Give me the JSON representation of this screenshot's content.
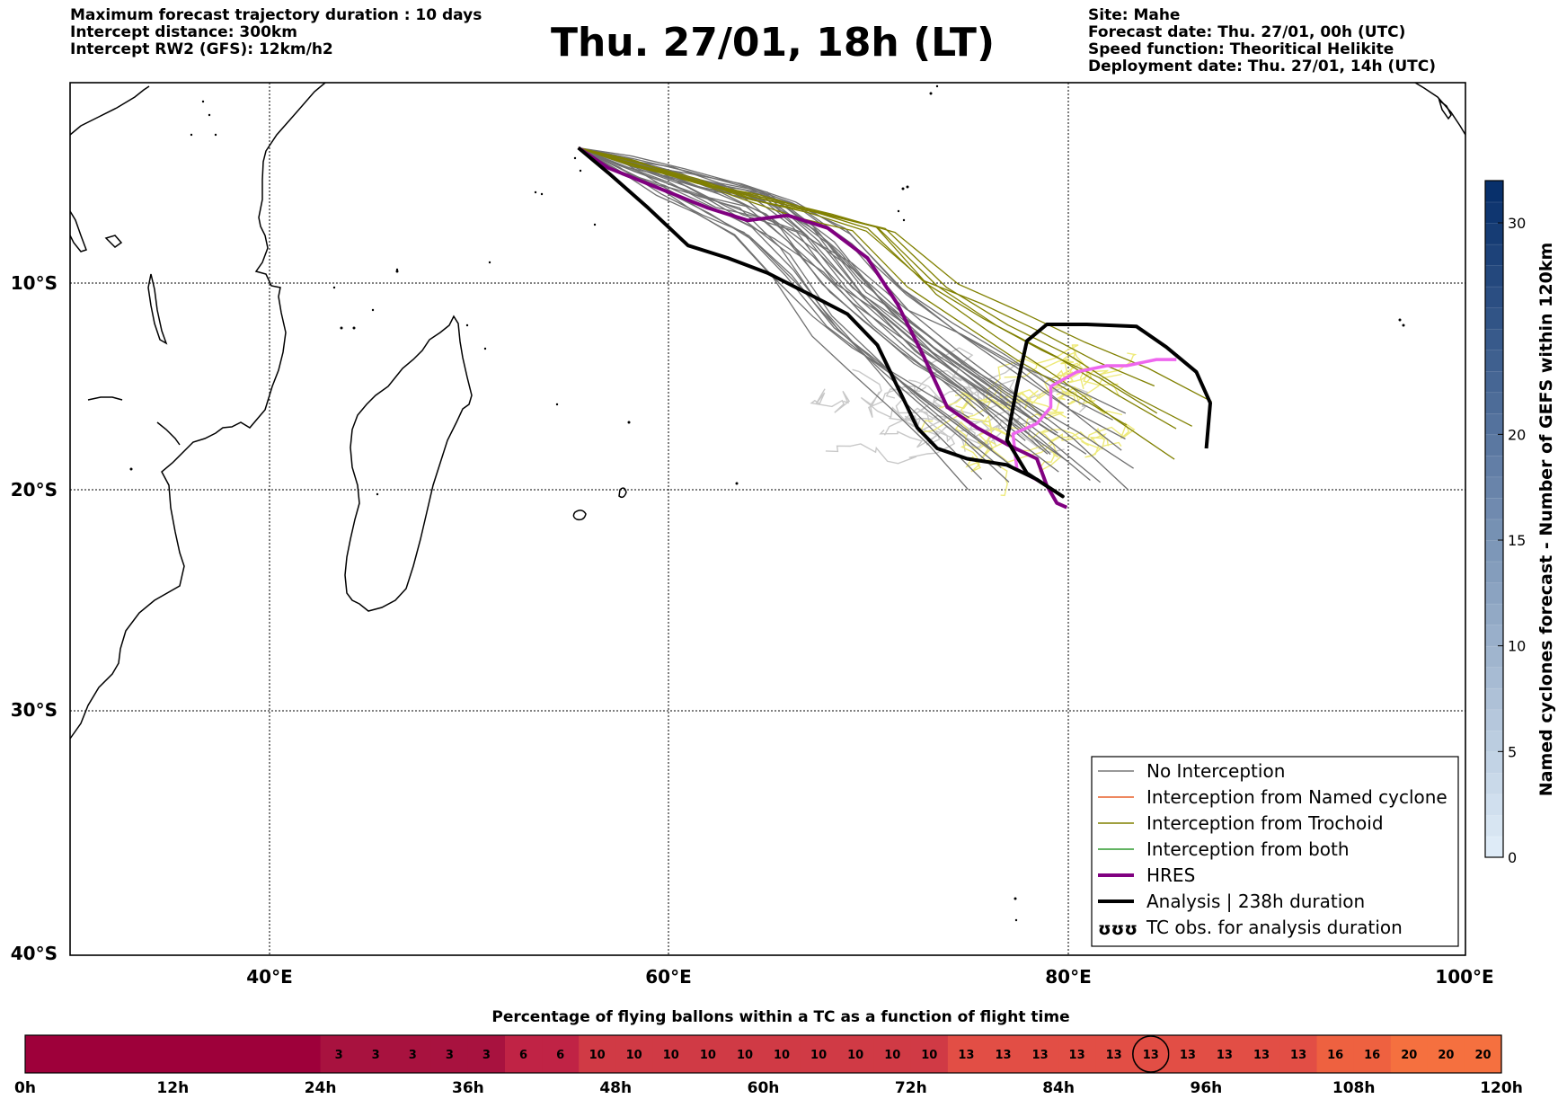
{
  "header": {
    "left": [
      "Maximum forecast trajectory duration : 10 days",
      "Intercept distance: 300km",
      "Intercept RW2 (GFS):  12km/h2"
    ],
    "title": "Thu. 27/01, 18h (LT)",
    "right": [
      "Site: Mahe",
      "Forecast date: Thu. 27/01, 00h (UTC)",
      "Speed function: Theoritical Helikite",
      "Deployment date: Thu. 27/01, 14h (UTC)"
    ]
  },
  "chart_data": {
    "type": "map",
    "x_ticks": [
      "40°E",
      "60°E",
      "80°E",
      "100°E"
    ],
    "y_ticks": [
      "10°S",
      "20°S",
      "30°S",
      "40°S"
    ],
    "lon_range": [
      30,
      100
    ],
    "lat_range": [
      -2,
      -40
    ],
    "grid": true,
    "legend": {
      "placement": "lower-right",
      "items": [
        {
          "label": "No Interception",
          "color": "#777777"
        },
        {
          "label": "Interception from Named cyclone",
          "color": "#e8602c"
        },
        {
          "label": "Interception from Trochoid",
          "color": "#808000"
        },
        {
          "label": "Interception from both",
          "color": "#2e9a2e"
        },
        {
          "label": "HRES",
          "color": "#800080"
        },
        {
          "label": "Analysis | 238h duration",
          "color": "#000000"
        },
        {
          "label": "TC obs. for analysis duration",
          "color": "#000000",
          "symbol": "ʊʊʊ"
        }
      ]
    },
    "colorbar": {
      "label": "Named cyclones forecast - Number of GEFS within 120km",
      "ticks": [
        0,
        5,
        10,
        15,
        20,
        30
      ],
      "range": [
        0,
        32
      ]
    },
    "tracks": {
      "launch": [
        55.5,
        -4.6
      ],
      "hres": [
        [
          55.5,
          -4.6
        ],
        [
          57,
          -5.4
        ],
        [
          59.5,
          -6.2
        ],
        [
          62,
          -7.0
        ],
        [
          64,
          -7.5
        ],
        [
          66,
          -7.3
        ],
        [
          68,
          -7.8
        ],
        [
          70,
          -9.0
        ],
        [
          71.5,
          -11.0
        ],
        [
          72.8,
          -13.5
        ],
        [
          74,
          -16.0
        ],
        [
          75.5,
          -17.0
        ],
        [
          77,
          -17.8
        ],
        [
          78.5,
          -18.5
        ],
        [
          79,
          -19.8
        ],
        [
          79.5,
          -20.6
        ],
        [
          80,
          -20.8
        ]
      ],
      "hres_late": [
        [
          79,
          -19.8
        ],
        [
          77.5,
          -19.0
        ],
        [
          77.3,
          -17.3
        ],
        [
          78.5,
          -16.8
        ],
        [
          79.2,
          -16.0
        ],
        [
          79.2,
          -15.0
        ],
        [
          80.5,
          -14.3
        ],
        [
          82,
          -14.0
        ],
        [
          83,
          -14.0
        ],
        [
          84.5,
          -13.7
        ],
        [
          85.5,
          -13.7
        ]
      ],
      "analysis": [
        [
          55.5,
          -4.6
        ],
        [
          57,
          -5.6
        ],
        [
          59,
          -7.0
        ],
        [
          61,
          -8.5
        ],
        [
          63,
          -9.0
        ],
        [
          65,
          -9.6
        ],
        [
          67,
          -10.5
        ],
        [
          69,
          -11.5
        ],
        [
          70.5,
          -13.0
        ],
        [
          71.5,
          -15.0
        ],
        [
          72.5,
          -17.0
        ],
        [
          73.5,
          -18.0
        ],
        [
          75,
          -18.5
        ],
        [
          77,
          -18.8
        ],
        [
          78.5,
          -19.5
        ],
        [
          79.8,
          -20.3
        ],
        [
          78,
          -19.2
        ],
        [
          77,
          -17.6
        ],
        [
          77.5,
          -15.0
        ],
        [
          78,
          -12.8
        ],
        [
          79,
          -12.0
        ],
        [
          81,
          -12.0
        ],
        [
          83.5,
          -12.1
        ],
        [
          85,
          -13.1
        ],
        [
          86.5,
          -14.3
        ],
        [
          87.2,
          -15.8
        ],
        [
          87,
          -18.0
        ]
      ]
    },
    "balloon_bar": {
      "title": "Percentage of flying ballons within a TC as a function of flight time",
      "tick_labels": [
        "0h",
        "12h",
        "24h",
        "36h",
        "48h",
        "60h",
        "72h",
        "84h",
        "96h",
        "108h",
        "120h"
      ],
      "cells": [
        0,
        0,
        0,
        0,
        0,
        0,
        0,
        0,
        3,
        3,
        3,
        3,
        3,
        6,
        6,
        10,
        10,
        10,
        10,
        10,
        10,
        10,
        10,
        10,
        10,
        13,
        13,
        13,
        13,
        13,
        13,
        13,
        13,
        13,
        13,
        16,
        16,
        20,
        20,
        20
      ],
      "highlight_index": 30
    }
  }
}
